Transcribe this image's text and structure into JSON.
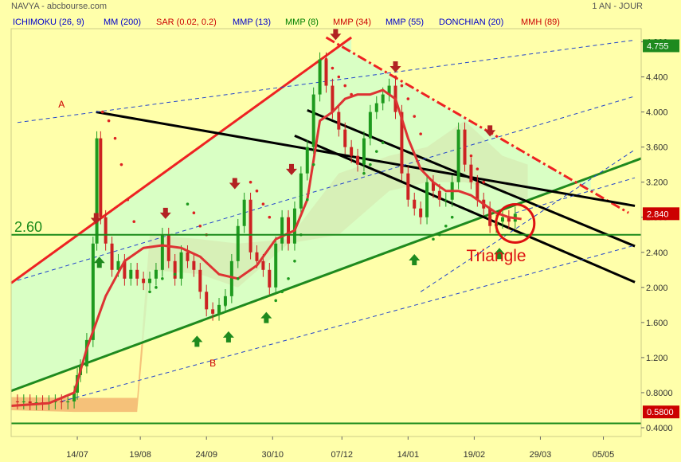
{
  "header": {
    "symbol_source": "NAVYA - abcbourse.com",
    "period": "1 AN - JOUR"
  },
  "indicators": [
    {
      "label": "ICHIMOKU (26, 9)",
      "color": "#0000cc"
    },
    {
      "label": "MM (200)",
      "color": "#0000cc"
    },
    {
      "label": "SAR (0.02, 0.2)",
      "color": "#cc0000"
    },
    {
      "label": "MMP (13)",
      "color": "#0000cc"
    },
    {
      "label": "MMP (8)",
      "color": "#008000"
    },
    {
      "label": "MMP (34)",
      "color": "#cc0000"
    },
    {
      "label": "MMP (55)",
      "color": "#0000cc"
    },
    {
      "label": "DONCHIAN (20)",
      "color": "#0000cc"
    },
    {
      "label": "MMH (89)",
      "color": "#cc0000"
    }
  ],
  "chart_data": {
    "type": "candlestick",
    "x_ticks": [
      "14/07",
      "19/08",
      "24/09",
      "30/10",
      "07/12",
      "14/01",
      "19/02",
      "29/03",
      "05/05"
    ],
    "y_ticks": [
      0.4,
      0.8,
      1.2,
      1.6,
      2.0,
      2.4,
      2.8,
      3.2,
      3.6,
      4.0,
      4.4,
      4.8
    ],
    "y_tick_labels": [
      "0.4000",
      "0.8000",
      "1.200",
      "1.600",
      "2.000",
      "2.400",
      "2.800",
      "3.200",
      "3.600",
      "4.000",
      "4.400",
      "4.800"
    ],
    "ylim": [
      0.3,
      4.95
    ],
    "x_range": [
      0,
      100
    ],
    "horizontal_lines": [
      {
        "value": 2.6,
        "label": "2.60",
        "color": "#1a8a1a"
      },
      {
        "value": 0.45,
        "label": "",
        "color": "#1a8a1a"
      }
    ],
    "price_tags": [
      {
        "value": 4.755,
        "label": "4.755",
        "bg": "#1e8a1e"
      },
      {
        "value": 2.84,
        "label": "2.840",
        "bg": "#cc0000"
      },
      {
        "value": 0.58,
        "label": "0.5800",
        "bg": "#cc0000"
      }
    ],
    "annotations": [
      {
        "text": "A",
        "x": 8,
        "y": 4.05,
        "color": "#cc0000"
      },
      {
        "text": "B",
        "x": 32,
        "y": 1.1,
        "color": "#cc0000"
      },
      {
        "text": "Triangle",
        "x": 77,
        "y": 2.3,
        "color": "#dd1111"
      }
    ],
    "closes": [
      [
        0,
        0.7
      ],
      [
        1,
        0.69
      ],
      [
        2,
        0.7
      ],
      [
        3,
        0.68
      ],
      [
        4,
        0.69
      ],
      [
        5,
        0.68
      ],
      [
        6,
        0.69
      ],
      [
        7,
        0.7
      ],
      [
        8,
        0.69
      ],
      [
        9,
        0.7
      ],
      [
        10,
        0.8
      ],
      [
        10.5,
        1.0
      ],
      [
        11,
        1.1
      ],
      [
        12,
        1.4
      ],
      [
        13,
        2.5
      ],
      [
        13.6,
        3.7
      ],
      [
        14.2,
        2.8
      ],
      [
        15,
        2.5
      ],
      [
        16,
        2.2
      ],
      [
        17,
        2.3
      ],
      [
        18,
        2.1
      ],
      [
        19,
        2.2
      ],
      [
        20,
        2.1
      ],
      [
        21,
        2.05
      ],
      [
        22,
        2.1
      ],
      [
        23,
        2.2
      ],
      [
        24,
        2.6
      ],
      [
        25,
        2.3
      ],
      [
        26,
        2.1
      ],
      [
        27,
        2.4
      ],
      [
        28,
        2.3
      ],
      [
        29,
        2.2
      ],
      [
        30,
        1.95
      ],
      [
        31,
        1.75
      ],
      [
        32,
        1.7
      ],
      [
        33,
        1.8
      ],
      [
        34,
        1.9
      ],
      [
        35,
        2.3
      ],
      [
        36,
        2.7
      ],
      [
        37,
        3.0
      ],
      [
        38,
        2.4
      ],
      [
        39,
        2.3
      ],
      [
        40,
        2.2
      ],
      [
        41,
        2.0
      ],
      [
        42,
        2.5
      ],
      [
        43,
        2.8
      ],
      [
        44,
        2.5
      ],
      [
        45,
        2.9
      ],
      [
        46,
        3.3
      ],
      [
        47,
        3.6
      ],
      [
        48,
        4.2
      ],
      [
        49,
        4.6
      ],
      [
        50,
        4.3
      ],
      [
        51,
        4.0
      ],
      [
        52,
        3.8
      ],
      [
        53,
        3.6
      ],
      [
        54,
        3.5
      ],
      [
        55,
        3.4
      ],
      [
        56,
        3.7
      ],
      [
        57,
        4.0
      ],
      [
        58,
        4.1
      ],
      [
        59,
        4.2
      ],
      [
        60,
        4.3
      ],
      [
        61,
        4.0
      ],
      [
        62,
        3.3
      ],
      [
        63,
        3.0
      ],
      [
        64,
        2.9
      ],
      [
        65,
        2.8
      ],
      [
        66,
        3.2
      ],
      [
        67,
        3.1
      ],
      [
        68,
        3.0
      ],
      [
        69,
        3.0
      ],
      [
        70,
        3.2
      ],
      [
        71,
        3.8
      ],
      [
        72,
        3.4
      ],
      [
        73,
        3.2
      ],
      [
        74,
        3.0
      ],
      [
        75,
        2.9
      ],
      [
        76,
        2.7
      ],
      [
        77,
        2.75
      ],
      [
        78,
        2.8
      ],
      [
        79,
        2.75
      ],
      [
        80,
        2.84
      ]
    ],
    "lines": [
      {
        "name": "resistance-line",
        "color": "#ee2222",
        "width": 3,
        "dash": "",
        "points": [
          [
            0,
            2.05
          ],
          [
            54,
            4.85
          ]
        ]
      },
      {
        "name": "support-line",
        "color": "#1e8a1e",
        "width": 3,
        "dash": "",
        "points": [
          [
            0,
            0.82
          ],
          [
            100,
            3.47
          ]
        ]
      },
      {
        "name": "descending-resistance",
        "color": "#ee2222",
        "width": 3,
        "dash": "12 4 3 4",
        "points": [
          [
            50,
            4.85
          ],
          [
            98,
            2.85
          ]
        ]
      },
      {
        "name": "black-channel-1",
        "color": "#000000",
        "width": 3,
        "dash": "",
        "points": [
          [
            13.5,
            4.0
          ],
          [
            99,
            2.93
          ]
        ]
      },
      {
        "name": "black-channel-2",
        "color": "#000000",
        "width": 3,
        "dash": "",
        "points": [
          [
            47,
            4.02
          ],
          [
            99,
            2.47
          ]
        ]
      },
      {
        "name": "black-channel-3",
        "color": "#000000",
        "width": 3,
        "dash": "",
        "points": [
          [
            45,
            3.73
          ],
          [
            99,
            2.06
          ]
        ]
      },
      {
        "name": "blue-dashed-upper",
        "color": "#2244cc",
        "width": 1,
        "dash": "5 4",
        "points": [
          [
            1,
            3.88
          ],
          [
            99,
            4.82
          ]
        ]
      },
      {
        "name": "blue-dashed-mid",
        "color": "#2244cc",
        "width": 1,
        "dash": "5 4",
        "points": [
          [
            1,
            2.08
          ],
          [
            99,
            4.18
          ]
        ]
      },
      {
        "name": "blue-dashed-lower",
        "color": "#2244cc",
        "width": 1,
        "dash": "5 4",
        "points": [
          [
            8,
            0.7
          ],
          [
            99,
            2.48
          ]
        ]
      },
      {
        "name": "blue-dashed-fan-1",
        "color": "#2244cc",
        "width": 1,
        "dash": "5 4",
        "points": [
          [
            65,
            1.95
          ],
          [
            99,
            3.57
          ]
        ]
      },
      {
        "name": "blue-dashed-fan-2",
        "color": "#2244cc",
        "width": 1,
        "dash": "5 4",
        "points": [
          [
            80,
            2.85
          ],
          [
            99,
            3.25
          ]
        ]
      }
    ],
    "ma_curve": {
      "name": "MMH (89)",
      "color": "#dd3333",
      "points": [
        [
          0,
          0.65
        ],
        [
          6,
          0.68
        ],
        [
          10,
          0.8
        ],
        [
          12,
          1.3
        ],
        [
          15,
          1.9
        ],
        [
          18,
          2.3
        ],
        [
          21,
          2.45
        ],
        [
          24,
          2.48
        ],
        [
          27,
          2.45
        ],
        [
          30,
          2.35
        ],
        [
          33,
          2.15
        ],
        [
          36,
          2.1
        ],
        [
          39,
          2.25
        ],
        [
          42,
          2.55
        ],
        [
          45,
          2.65
        ],
        [
          47,
          3.0
        ],
        [
          49,
          3.9
        ],
        [
          51,
          4.0
        ],
        [
          53,
          4.15
        ],
        [
          55,
          4.2
        ],
        [
          57,
          4.2
        ],
        [
          59,
          4.25
        ],
        [
          61,
          4.15
        ],
        [
          63,
          3.7
        ],
        [
          65,
          3.35
        ],
        [
          67,
          3.2
        ],
        [
          69,
          3.1
        ],
        [
          71,
          3.1
        ],
        [
          73,
          3.05
        ],
        [
          75,
          2.95
        ],
        [
          77,
          2.85
        ],
        [
          79,
          2.8
        ],
        [
          81,
          2.78
        ]
      ]
    },
    "cloud": {
      "color": "#f0a060",
      "upper": [
        [
          0,
          0.75
        ],
        [
          10,
          0.74
        ],
        [
          20,
          0.74
        ],
        [
          22,
          2.6
        ],
        [
          30,
          2.55
        ],
        [
          36,
          2.5
        ],
        [
          44,
          2.55
        ],
        [
          52,
          3.3
        ],
        [
          60,
          3.5
        ],
        [
          66,
          3.6
        ],
        [
          72,
          3.9
        ],
        [
          78,
          3.5
        ],
        [
          82,
          3.4
        ]
      ],
      "lower": [
        [
          0,
          0.6
        ],
        [
          10,
          0.58
        ],
        [
          20,
          0.58
        ],
        [
          22,
          2.2
        ],
        [
          30,
          2.15
        ],
        [
          36,
          2.0
        ],
        [
          44,
          2.5
        ],
        [
          52,
          2.6
        ],
        [
          60,
          3.1
        ],
        [
          66,
          3.2
        ],
        [
          72,
          3.2
        ],
        [
          78,
          3.1
        ],
        [
          82,
          3.0
        ]
      ]
    },
    "sar_dots": [
      [
        14.5,
        4.0
      ],
      [
        15.5,
        3.9
      ],
      [
        16.5,
        3.7
      ],
      [
        17.5,
        3.4
      ],
      [
        18.5,
        3.0
      ],
      [
        19.5,
        2.75
      ],
      [
        22,
        1.95
      ],
      [
        23,
        2.0
      ],
      [
        24,
        2.1
      ],
      [
        26,
        2.15
      ],
      [
        27,
        2.2
      ],
      [
        28,
        2.95
      ],
      [
        29,
        2.85
      ],
      [
        30,
        2.7
      ],
      [
        31,
        2.6
      ],
      [
        33,
        1.72
      ],
      [
        34,
        1.8
      ],
      [
        35,
        1.95
      ],
      [
        36,
        2.1
      ],
      [
        38,
        3.2
      ],
      [
        39,
        3.1
      ],
      [
        40,
        2.95
      ],
      [
        41,
        2.8
      ],
      [
        42,
        1.85
      ],
      [
        43,
        1.95
      ],
      [
        44,
        2.1
      ],
      [
        45,
        2.3
      ],
      [
        46,
        2.6
      ],
      [
        47,
        3.0
      ],
      [
        48,
        3.4
      ],
      [
        50,
        4.6
      ],
      [
        51,
        4.5
      ],
      [
        52,
        4.4
      ],
      [
        53,
        4.3
      ],
      [
        54,
        4.2
      ],
      [
        56,
        3.3
      ],
      [
        57,
        3.4
      ],
      [
        58,
        3.55
      ],
      [
        59,
        3.65
      ],
      [
        61,
        4.4
      ],
      [
        62,
        4.3
      ],
      [
        63,
        4.15
      ],
      [
        64,
        3.95
      ],
      [
        65,
        3.75
      ],
      [
        67,
        2.55
      ],
      [
        68,
        2.6
      ],
      [
        69,
        2.7
      ],
      [
        70,
        2.8
      ],
      [
        72,
        3.6
      ],
      [
        73,
        3.5
      ],
      [
        74,
        3.35
      ],
      [
        75,
        3.2
      ]
    ],
    "up_arrows": [
      [
        14,
        2.35
      ],
      [
        29.5,
        1.45
      ],
      [
        34.5,
        1.5
      ],
      [
        40.5,
        1.72
      ],
      [
        64,
        2.38
      ],
      [
        77.5,
        2.45
      ]
    ],
    "down_arrows": [
      [
        13.5,
        2.72
      ],
      [
        24.5,
        2.78
      ],
      [
        35.5,
        3.12
      ],
      [
        44.5,
        3.28
      ],
      [
        51.5,
        4.82
      ],
      [
        61,
        4.45
      ],
      [
        76,
        3.72
      ]
    ]
  }
}
